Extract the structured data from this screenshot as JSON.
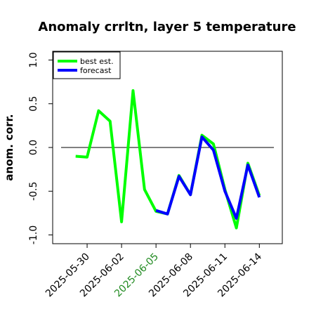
{
  "chart_data": {
    "type": "line",
    "title": "Anomaly crrltn, layer 5 temperature",
    "ylabel": "anom. corr.",
    "x": [
      "2025-05-29",
      "2025-05-30",
      "2025-05-31",
      "2025-06-01",
      "2025-06-02",
      "2025-06-03",
      "2025-06-04",
      "2025-06-05",
      "2025-06-06",
      "2025-06-07",
      "2025-06-08",
      "2025-06-09",
      "2025-06-10",
      "2025-06-11",
      "2025-06-12",
      "2025-06-13",
      "2025-06-14"
    ],
    "series": [
      {
        "name": "best est.",
        "color": "#00ff00",
        "values": [
          -0.1,
          -0.11,
          0.42,
          0.3,
          -0.85,
          0.65,
          -0.48,
          -0.73,
          -0.76,
          -0.32,
          -0.54,
          0.14,
          0.04,
          -0.48,
          -0.92,
          -0.18,
          -0.55
        ]
      },
      {
        "name": "forecast",
        "color": "#0000ff",
        "values": [
          null,
          null,
          null,
          null,
          null,
          null,
          null,
          -0.72,
          -0.76,
          -0.33,
          -0.54,
          0.12,
          -0.03,
          -0.5,
          -0.81,
          -0.2,
          -0.57
        ]
      }
    ],
    "xlim": [
      "2025-05-27",
      "2025-06-16"
    ],
    "xticks": [
      "2025-05-30",
      "2025-06-02",
      "2025-06-05",
      "2025-06-08",
      "2025-06-11",
      "2025-06-14"
    ],
    "highlight_xtick": 2,
    "highlight_color": "#228b22",
    "ylim": [
      -1.1,
      1.1
    ],
    "yticks": [
      {
        "value": -1,
        "label": "-1.0"
      },
      {
        "value": -0.5,
        "label": "-0.5"
      },
      {
        "value": 0,
        "label": "0.0"
      },
      {
        "value": 0.5,
        "label": "0.5"
      },
      {
        "value": 1,
        "label": "1.0"
      }
    ],
    "hline": 0,
    "legend": "upper left"
  }
}
